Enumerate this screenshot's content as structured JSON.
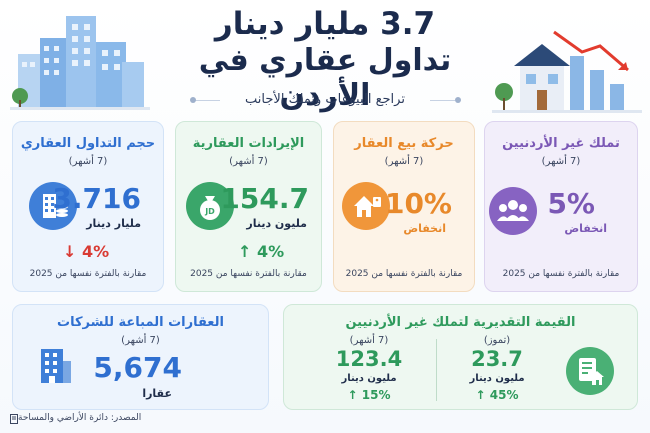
{
  "header": {
    "title": "3.7 مليار دينار",
    "subtitle": "تداول عقاري في الأردن",
    "tagline": "تراجع البيوعات وتملك الأجانب"
  },
  "cards": {
    "trading_volume": {
      "title": "حجم التداول العقاري",
      "period": "(7 أشهر)",
      "value": "3.716",
      "unit": "مليار دينار",
      "change": "4%",
      "change_direction": "down",
      "footnote": "مقارنة بالفترة نفسها من 2025",
      "icon": "building-coins-icon",
      "color": "#2f6fd0"
    },
    "revenues": {
      "title": "الإيرادات العقارية",
      "period": "(7 أشهر)",
      "value": "154.7",
      "unit": "مليون دينار",
      "change": "4%",
      "change_direction": "up",
      "footnote": "مقارنة بالفترة نفسها من 2025",
      "icon": "money-bag-icon",
      "icon_text": "JD",
      "color": "#2e9a5c"
    },
    "sales_movement": {
      "title": "حركة بيع العقار",
      "period": "(7 أشهر)",
      "value": "10%",
      "unit": "انخفاض",
      "footnote": "مقارنة بالفترة نفسها من 2025",
      "icon": "house-tag-icon",
      "color": "#e8892b"
    },
    "foreign_ownership": {
      "title": "تملك غير الأردنيين",
      "period": "(7 أشهر)",
      "value": "5%",
      "unit": "انخفاض",
      "footnote": "مقارنة بالفترة نفسها من 2025",
      "icon": "people-group-icon",
      "color": "#7b58b5"
    },
    "company_sold": {
      "title": "العقارات المباعة للشركات",
      "period": "(7 أشهر)",
      "value": "5,674",
      "unit": "عقارا",
      "icon": "office-building-icon",
      "color": "#2f6fd0"
    },
    "estimated_value": {
      "title": "القيمة التقديرية لتملك غير الأردنيين",
      "icon": "document-house-icon",
      "color": "#2e9a5c",
      "left": {
        "period": "(7 أشهر)",
        "value": "123.4",
        "unit": "مليون دينار",
        "change": "15%",
        "change_direction": "up"
      },
      "right": {
        "period": "(تموز)",
        "value": "23.7",
        "unit": "مليون دينار",
        "change": "45%",
        "change_direction": "up"
      }
    }
  },
  "source": "المصدر: دائرة الأراضي والمساحة"
}
